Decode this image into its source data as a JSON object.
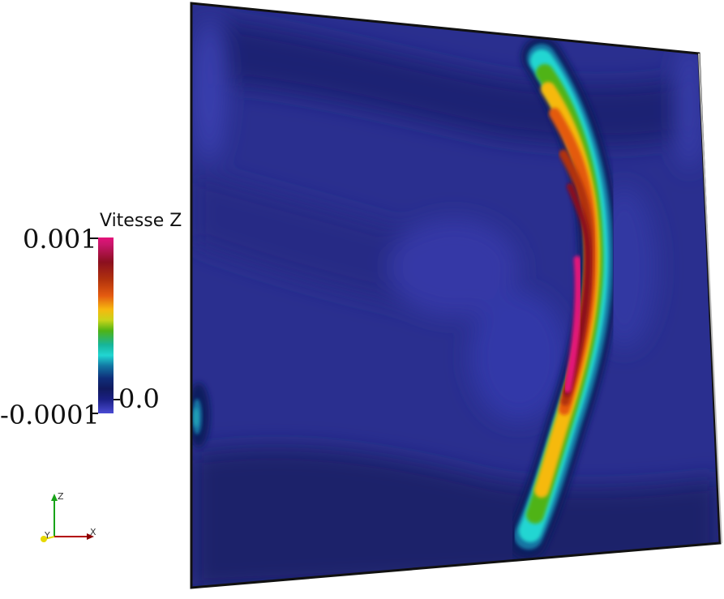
{
  "colorbar": {
    "title": "Vitesse Z",
    "max_label": "0.001",
    "min_label": "-0.0001",
    "zero_label": "0.0",
    "range": [
      -0.0001,
      0.001
    ],
    "colormap": [
      "#4a4bd3",
      "#1a1f83",
      "#111a5e",
      "#0f2e7a",
      "#1276a3",
      "#21d6d2",
      "#16b59a",
      "#4fb315",
      "#c8d41a",
      "#f6b90f",
      "#e45a10",
      "#b1320d",
      "#8b0f1f",
      "#c8166a",
      "#e4127a"
    ]
  },
  "axes_triad": {
    "z": "Z",
    "y": "Y",
    "x": "X",
    "colors": {
      "x": "#b30000",
      "y": "#e6d800",
      "z": "#18a318"
    }
  },
  "plot": {
    "background": "#2a2f8f"
  }
}
